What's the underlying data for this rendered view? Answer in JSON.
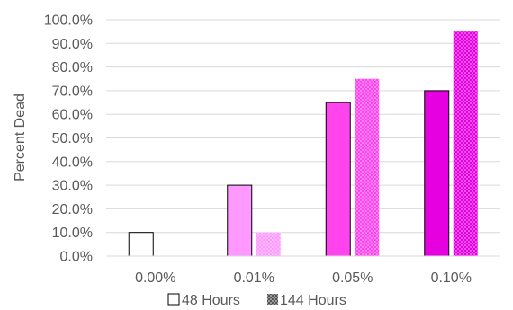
{
  "chart_data": {
    "type": "bar",
    "categories": [
      "0.00%",
      "0.01%",
      "0.05%",
      "0.10%"
    ],
    "series": [
      {
        "name": "48 Hours",
        "values": [
          10,
          30,
          65,
          70
        ],
        "pattern": "solid"
      },
      {
        "name": "144 Hours",
        "values": [
          0,
          10,
          75,
          95
        ],
        "pattern": "dotted"
      }
    ],
    "category_colors": [
      "#ffffff",
      "#ff99ff",
      "#ff44ee",
      "#e600e0"
    ],
    "ylabel": "Percent Dead",
    "xlabel": "",
    "ylim": [
      0,
      100
    ],
    "ytick_step": 10,
    "ytick_format": "percent_1dp",
    "grid": true,
    "legend_position": "bottom"
  }
}
